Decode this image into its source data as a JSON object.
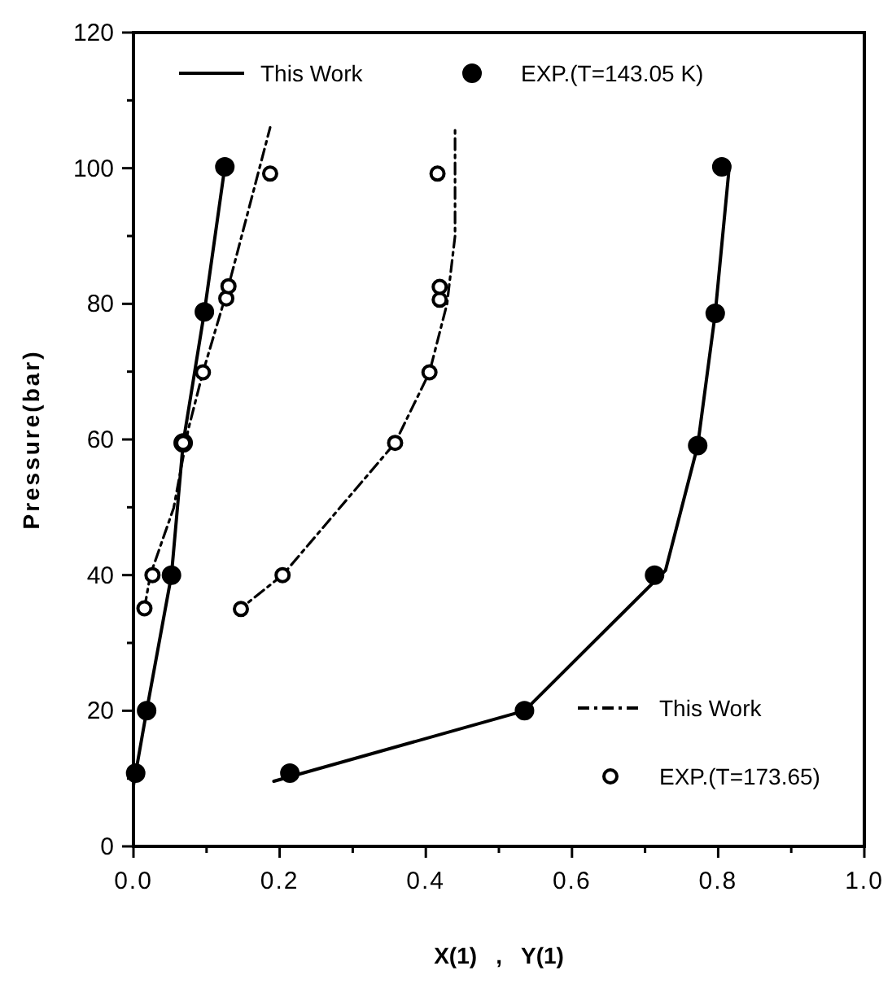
{
  "chart_data": {
    "type": "scatter",
    "xlabel": "X(1)   ,   Y(1)",
    "ylabel": "Pressure(bar)",
    "xlim": [
      0,
      1
    ],
    "ylim": [
      0,
      120
    ],
    "xticks": [
      {
        "value": 0,
        "label": "0.0"
      },
      {
        "value": 0.1,
        "label": null
      },
      {
        "value": 0.2,
        "label": "0.2"
      },
      {
        "value": 0.3,
        "label": null
      },
      {
        "value": 0.4,
        "label": "0.4"
      },
      {
        "value": 0.5,
        "label": null
      },
      {
        "value": 0.6,
        "label": "0.6"
      },
      {
        "value": 0.7,
        "label": null
      },
      {
        "value": 0.8,
        "label": "0.8"
      },
      {
        "value": 0.9,
        "label": null
      },
      {
        "value": 1,
        "label": "1.0"
      }
    ],
    "yticks": [
      0,
      {
        "value": 10,
        "label": null
      },
      20,
      {
        "value": 30,
        "label": null
      },
      40,
      {
        "value": 50,
        "label": null
      },
      60,
      {
        "value": 70,
        "label": null
      },
      80,
      {
        "value": 90,
        "label": null
      },
      100,
      {
        "value": 110,
        "label": null
      },
      120
    ],
    "legend": "top left",
    "grid": false,
    "series": [
      {
        "name": "This Work",
        "type": "line",
        "line_style": "solid",
        "color": "#000000",
        "x": [
          0.0,
          0.003,
          0.018,
          0.052,
          0.068,
          0.097,
          0.125,
          null,
          0.192,
          0.535,
          0.728,
          0.772,
          0.796,
          0.815
        ],
        "values": [
          9,
          10.8,
          20,
          40,
          59.5,
          78.8,
          100.2,
          null,
          9.6,
          20,
          40.7,
          59.1,
          78.6,
          100
        ]
      },
      {
        "name": "EXP.(T=143.05 K)",
        "marker": "circle",
        "color": "#000000",
        "x": [
          0.003,
          0.018,
          0.052,
          0.068,
          0.097,
          0.125,
          0.214,
          0.535,
          0.713,
          0.772,
          0.796,
          0.805
        ],
        "values": [
          10.8,
          20,
          40,
          59.5,
          78.8,
          100.2,
          10.8,
          20,
          40,
          59.1,
          78.6,
          100.2
        ]
      },
      {
        "name": "This Work",
        "type": "line",
        "line_style": "dashed",
        "color": "#000000",
        "x": [
          0.015,
          0.023,
          0.055,
          0.075,
          0.095,
          0.13,
          0.187,
          null,
          0.14,
          0.204,
          0.358,
          0.405,
          0.429,
          0.44,
          0.44
        ],
        "values": [
          35.1,
          40,
          49.9,
          61.5,
          69.9,
          82.6,
          106,
          null,
          34.5,
          40,
          59.5,
          69.9,
          80,
          90,
          105.8
        ]
      },
      {
        "name": "EXP.(T=173.65)",
        "marker": "circle",
        "color": "#000000",
        "x": [
          0.015,
          0.026,
          0.068,
          0.095,
          0.127,
          0.13,
          0.187,
          0.147,
          0.204,
          0.358,
          0.405,
          0.419,
          0.419,
          0.416
        ],
        "values": [
          35.1,
          40,
          59.5,
          69.9,
          80.8,
          82.6,
          99.2,
          35,
          40,
          59.5,
          69.9,
          80.6,
          82.5,
          99.2
        ]
      }
    ]
  }
}
